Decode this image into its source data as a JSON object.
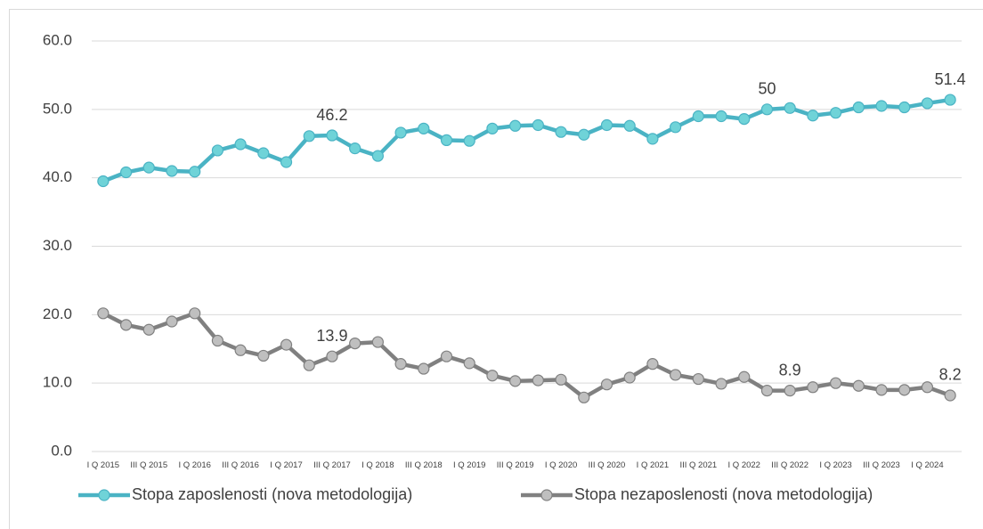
{
  "chart_data": {
    "type": "line",
    "categories": [
      "I Q 2015",
      null,
      "III Q 2015",
      null,
      "I Q 2016",
      null,
      "III Q 2016",
      null,
      "I Q 2017",
      null,
      "III Q 2017",
      null,
      "I Q 2018",
      null,
      "III Q 2018",
      null,
      "I Q 2019",
      null,
      "III Q 2019",
      null,
      "I Q 2020",
      null,
      "III Q 2020",
      null,
      "I Q 2021",
      null,
      "III Q 2021",
      null,
      "I Q 2022",
      null,
      "III Q 2022",
      null,
      "I Q 2023",
      null,
      "III Q 2023",
      null,
      "I Q 2024",
      null
    ],
    "series": [
      {
        "name": "Stopa zaposlenosti (nova metodologija)",
        "color": "#4ab3c4",
        "marker_color": "#6fd3d8",
        "values": [
          39.5,
          40.8,
          41.5,
          41.0,
          40.9,
          44.0,
          44.9,
          43.6,
          42.3,
          46.1,
          46.2,
          44.3,
          43.2,
          46.6,
          47.2,
          45.5,
          45.4,
          47.2,
          47.6,
          47.7,
          46.7,
          46.3,
          47.7,
          47.6,
          45.7,
          47.4,
          49.0,
          49.0,
          48.6,
          50.0,
          50.2,
          49.1,
          49.5,
          50.3,
          50.5,
          50.3,
          50.9,
          51.4
        ],
        "value_labels": [
          null,
          null,
          null,
          null,
          null,
          null,
          null,
          null,
          null,
          null,
          "46.2",
          null,
          null,
          null,
          null,
          null,
          null,
          null,
          null,
          null,
          null,
          null,
          null,
          null,
          null,
          null,
          null,
          null,
          null,
          "50",
          null,
          null,
          null,
          null,
          null,
          null,
          null,
          "51.4"
        ]
      },
      {
        "name": "Stopa nezaposlenosti (nova metodologija)",
        "color": "#808080",
        "marker_color": "#bfbfbf",
        "values": [
          20.2,
          18.5,
          17.8,
          19.0,
          20.2,
          16.2,
          14.8,
          14.0,
          15.6,
          12.6,
          13.9,
          15.8,
          16.0,
          12.8,
          12.1,
          13.9,
          12.9,
          11.1,
          10.3,
          10.4,
          10.5,
          7.9,
          9.8,
          10.8,
          12.8,
          11.2,
          10.6,
          9.9,
          10.9,
          8.9,
          8.9,
          9.4,
          10.0,
          9.6,
          9.0,
          9.0,
          9.4,
          8.2
        ],
        "value_labels": [
          null,
          null,
          null,
          null,
          null,
          null,
          null,
          null,
          null,
          null,
          "13.9",
          null,
          null,
          null,
          null,
          null,
          null,
          null,
          null,
          null,
          null,
          null,
          null,
          null,
          null,
          null,
          null,
          null,
          null,
          null,
          "8.9",
          null,
          null,
          null,
          null,
          null,
          null,
          "8.2"
        ]
      }
    ],
    "ylim": [
      0,
      60
    ],
    "yticks": [
      {
        "value": 0,
        "label": "0.0"
      },
      {
        "value": 10,
        "label": "10.0"
      },
      {
        "value": 20,
        "label": "20.0"
      },
      {
        "value": 30,
        "label": "30.0"
      },
      {
        "value": 40,
        "label": "40.0"
      },
      {
        "value": 50,
        "label": "50.0"
      },
      {
        "value": 60,
        "label": "60.0"
      }
    ],
    "grid": true,
    "legend": "bottom"
  }
}
